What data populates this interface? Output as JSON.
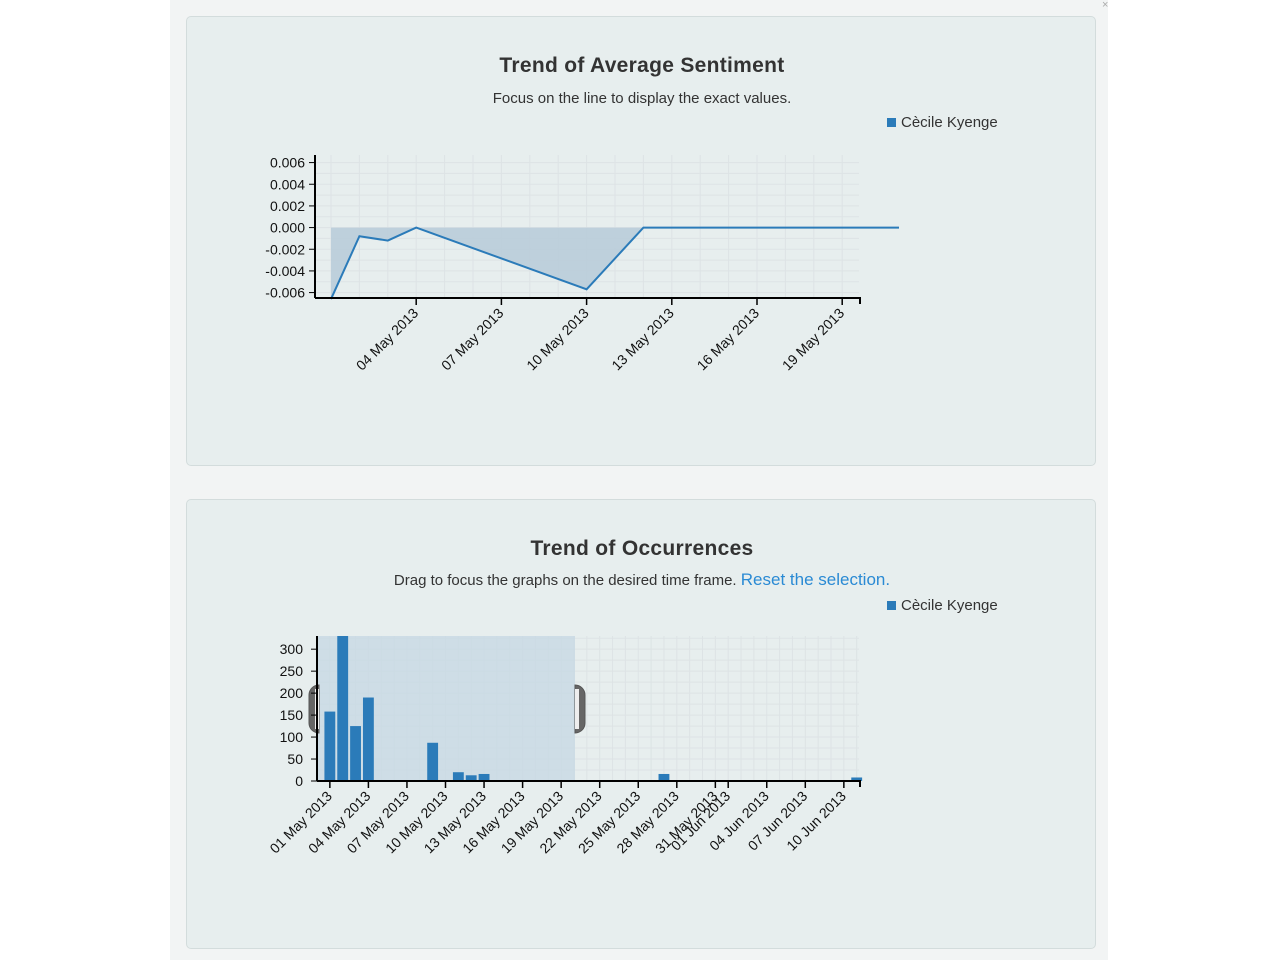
{
  "colors": {
    "series": "#2b7bb9",
    "area_fill": "#b9ccd9",
    "brush_fill": "#c9d9e4",
    "link": "#2a8ad4"
  },
  "sentiment_panel": {
    "title": "Trend of Average Sentiment",
    "subtitle": "Focus on the line to display the exact values."
  },
  "occurrences_panel": {
    "title": "Trend of Occurrences",
    "subtitle": "Drag to focus the graphs on the desired time frame.",
    "reset_link": "Reset the selection."
  },
  "chart_data": [
    {
      "type": "area",
      "title": "Trend of Average Sentiment",
      "subtitle": "Focus on the line to display the exact values.",
      "legend": [
        "Cècile Kyenge"
      ],
      "legend_position": "top-right",
      "xlabel": "",
      "ylabel": "",
      "grid": true,
      "xlim": [
        "2013-05-01",
        "2013-05-21"
      ],
      "ylim": [
        -0.0065,
        0.0067
      ],
      "y_ticks": [
        -0.006,
        -0.004,
        -0.002,
        0.0,
        0.002,
        0.004,
        0.006
      ],
      "y_tick_labels": [
        "-0.006",
        "-0.004",
        "-0.002",
        "0.000",
        "0.002",
        "0.004",
        "0.006"
      ],
      "x_ticks": [
        "2013-05-04",
        "2013-05-07",
        "2013-05-10",
        "2013-05-13",
        "2013-05-16",
        "2013-05-19"
      ],
      "x_tick_labels": [
        "04 May 2013",
        "07 May 2013",
        "10 May 2013",
        "13 May 2013",
        "16 May 2013",
        "19 May 2013"
      ],
      "series": [
        {
          "name": "Cècile Kyenge",
          "x": [
            "2013-05-01",
            "2013-05-02",
            "2013-05-03",
            "2013-05-04",
            "2013-05-10",
            "2013-05-12",
            "2013-05-21"
          ],
          "values": [
            -0.0066,
            -0.0008,
            -0.0012,
            0.0,
            -0.0057,
            0.0,
            0.0
          ]
        }
      ]
    },
    {
      "type": "bar",
      "title": "Trend of Occurrences",
      "subtitle": "Drag to focus the graphs on the desired time frame.",
      "legend": [
        "Cècile Kyenge"
      ],
      "legend_position": "top-right",
      "xlabel": "",
      "ylabel": "",
      "grid": true,
      "xlim": [
        "2013-04-30",
        "2013-06-12"
      ],
      "ylim": [
        0,
        330
      ],
      "y_ticks": [
        0,
        50,
        100,
        150,
        200,
        250,
        300
      ],
      "y_tick_labels": [
        "0",
        "50",
        "100",
        "150",
        "200",
        "250",
        "300"
      ],
      "x_ticks": [
        "2013-05-01",
        "2013-05-04",
        "2013-05-07",
        "2013-05-10",
        "2013-05-13",
        "2013-05-16",
        "2013-05-19",
        "2013-05-22",
        "2013-05-25",
        "2013-05-28",
        "2013-05-31",
        "2013-06-01",
        "2013-06-04",
        "2013-06-07",
        "2013-06-10"
      ],
      "x_tick_labels": [
        "01 May 2013",
        "04 May 2013",
        "07 May 2013",
        "10 May 2013",
        "13 May 2013",
        "16 May 2013",
        "19 May 2013",
        "22 May 2013",
        "25 May 2013",
        "28 May 2013",
        "31 May 2013",
        "01 Jun 2013",
        "04 Jun 2013",
        "07 Jun 2013",
        "10 Jun 2013"
      ],
      "selection": [
        "2013-05-01",
        "2013-05-20"
      ],
      "series": [
        {
          "name": "Cècile Kyenge",
          "x": [
            "2013-05-01",
            "2013-05-02",
            "2013-05-03",
            "2013-05-04",
            "2013-05-09",
            "2013-05-11",
            "2013-05-12",
            "2013-05-13",
            "2013-05-27",
            "2013-06-11"
          ],
          "values": [
            158,
            330,
            125,
            190,
            87,
            20,
            13,
            16,
            16,
            8
          ]
        }
      ]
    }
  ]
}
